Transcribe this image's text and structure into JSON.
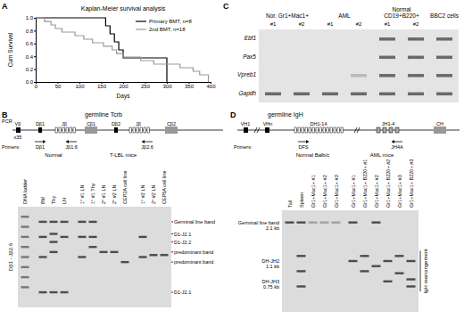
{
  "chart_data": {
    "type": "line",
    "title": "Kaplan-Meier survival analysis",
    "x_label": "Days",
    "y_label": "Cum Survival",
    "xlim": [
      0,
      400
    ],
    "xticks": [
      0,
      50,
      100,
      150,
      200,
      250,
      300,
      350,
      400
    ],
    "ylim": [
      0,
      1
    ],
    "yticks": [
      {
        "value": 0,
        "label": "0.0"
      },
      {
        "value": 0.2,
        "label": "0.2"
      },
      {
        "value": 0.4,
        "label": "0.4"
      },
      {
        "value": 0.6,
        "label": "0.6"
      },
      {
        "value": 0.8,
        "label": "0.8"
      },
      {
        "value": 1,
        "label": "1.0"
      }
    ],
    "grid": false,
    "legend": "upper right",
    "series": [
      {
        "name": "Primary BMT, n=8",
        "color": "#000000",
        "line_style": "step",
        "x": [
          0,
          160,
          170,
          180,
          190,
          200,
          300
        ],
        "values": [
          1,
          0.875,
          0.75,
          0.625,
          0.5,
          0.375,
          0
        ]
      },
      {
        "name": "2nd BMT, n=18",
        "color": "#999999",
        "line_style": "step",
        "x": [
          0,
          20,
          35,
          45,
          60,
          90,
          110,
          130,
          155,
          175,
          185,
          200,
          240,
          270,
          330,
          360,
          375,
          395
        ],
        "values": [
          1,
          0.944,
          0.889,
          0.833,
          0.778,
          0.722,
          0.667,
          0.611,
          0.556,
          0.5,
          0.444,
          0.389,
          0.333,
          0.278,
          0.222,
          0.167,
          0.111,
          0
        ]
      }
    ]
  },
  "panels": {
    "A": {
      "letter": "A"
    },
    "B": {
      "letter": "B",
      "diagram": {
        "title": "germline Tcrb",
        "pcr": "PCR",
        "segments": [
          "Vβ",
          "x35",
          "Dβ1",
          "Jβ",
          "Cβ1",
          "Dβ2",
          "Jβ",
          "Cβ2"
        ],
        "primers_label": "Primers:",
        "primers": [
          "Dβ1",
          "Jβ1.6",
          "Jβ2.6"
        ]
      },
      "gel": {
        "side_label": "Dβ1 - Jβ2.6",
        "ladder": "DNA ladder",
        "groups": [
          {
            "label": "Normal",
            "lanes": [
              "BM",
              "Thy",
              "LN"
            ]
          },
          {
            "label": "T-LBL mice",
            "lanes": [
              "1° #1 LN",
              "1° #1 Thy",
              "2° #1 LN",
              "2° #2 LN",
              "CEP2A cell line",
              "1° #2 LN",
              "2° #2 LN",
              "CEP5A cell line"
            ]
          }
        ],
        "band_labels": [
          "Germinal line band",
          "D1-J2.1",
          "D1-J2.2",
          "predominant band",
          "predominant band",
          "D1-J2.1"
        ]
      }
    },
    "C": {
      "letter": "C",
      "groups": [
        {
          "label": [
            "Nor. Gr1+Mac1+"
          ],
          "lanes": [
            "#1",
            "#2"
          ]
        },
        {
          "label": [
            "AML"
          ],
          "lanes": [
            "#1",
            "#2"
          ]
        },
        {
          "label": [
            "Normal",
            "CD19+B220+"
          ],
          "lanes": [
            "#1",
            "#2"
          ]
        },
        {
          "label": [
            "BBC2 cells"
          ],
          "lanes": []
        }
      ],
      "genes": [
        "Ebf1",
        "Pax5",
        "Vpreb1",
        "Gapdh"
      ]
    },
    "D": {
      "letter": "D",
      "diagram": {
        "title": "germline IgH",
        "segments": [
          "VH1",
          "VHn",
          "DH1-14",
          "JH1-4",
          "CH"
        ],
        "primers_label": "Primers:",
        "primers": [
          "DFS",
          "JH4A"
        ]
      },
      "gel": {
        "groups": [
          {
            "label": "Normal Balb/c",
            "lanes": [
              "Tail",
              "Spleen",
              "Gr1+Mac1+ #1",
              "Gr1+Mac1+ #2",
              "Gr1+Mac1+ #3"
            ]
          },
          {
            "label": "AML mice",
            "lanes": [
              "Gr1+Mac1+ #1",
              "Gr1+Mac1+ B220+ #1",
              "Gr1+Mac1+ #2",
              "Gr1+Mac1+ B220+ #2",
              "Gr1+Mac1+ #3",
              "Gr1+Mac1+ B220+ #3"
            ]
          }
        ],
        "band_labels": [
          [
            "Germinal line band",
            "2.1 kb"
          ],
          [
            "DH-JH2",
            "1.1 kb"
          ],
          [
            "DH-JH3",
            "0.75 kb"
          ]
        ],
        "side_label": "IgH rearrangement"
      }
    }
  }
}
